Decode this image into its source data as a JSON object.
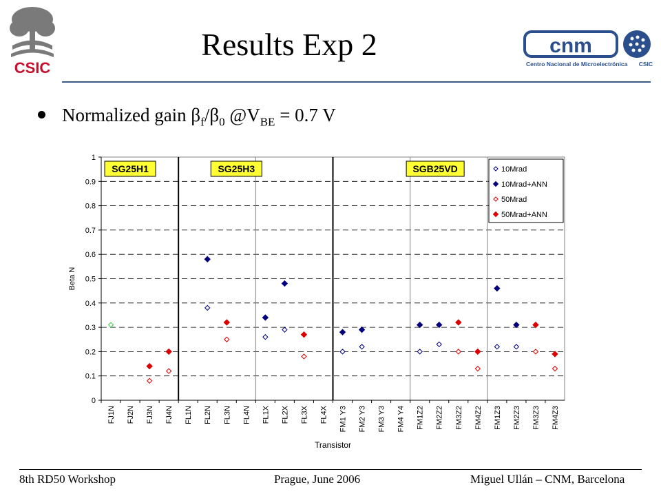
{
  "slide": {
    "title": "Results Exp 2",
    "bullet": {
      "prefix": "Normalized gain β",
      "sub1": "f",
      "mid": "/β",
      "sub2": "0",
      "middle": " @V",
      "sub3": "BE",
      "suffix": " = 0.7 V"
    },
    "logos": {
      "left_text": "CSIC",
      "right_text": "Centro Nacional de Microelectrónica",
      "right_badge": "CSIC"
    },
    "footer": {
      "left": "8th RD50 Workshop",
      "center": "Prague, June 2006",
      "right": "Miguel Ullán – CNM, Barcelona"
    },
    "colors": {
      "accent_rule": "#3a5a86",
      "logo_blue": "#2a4f8c",
      "navy": "#00007f",
      "red": "#dd0000",
      "green": "#33cc33",
      "group_label_bg": "#ffff33"
    }
  },
  "chart_data": {
    "type": "scatter",
    "xlabel": "Transistor",
    "ylabel": "Beta N",
    "ylim": [
      0,
      1
    ],
    "yticks": [
      "0",
      "0.1",
      "0.2",
      "0.3",
      "0.4",
      "0.5",
      "0.6",
      "0.7",
      "0.8",
      "0.9",
      "1"
    ],
    "grid": "dashed horizontal",
    "legend_position": "top-right",
    "categories": [
      "FJ1N",
      "FJ2N",
      "FJ3N",
      "FJ4N",
      "FL1N",
      "FL2N",
      "FL3N",
      "FL4N",
      "FL1X",
      "FL2X",
      "FL3X",
      "FL4X",
      "FM1 Y3",
      "FM2 Y3",
      "FM3 Y3",
      "FM4 Y4",
      "FM1Z2",
      "FM2Z2",
      "FM3Z2",
      "FM4Z2",
      "FM1Z3",
      "FM2Z3",
      "FM3Z3",
      "FM4Z3"
    ],
    "group_labels": [
      {
        "label": "SG25H1",
        "first": 0,
        "last": 3
      },
      {
        "label": "SG25H3",
        "first": 4,
        "last": 11
      },
      {
        "label": "SGB25VD",
        "first": 12,
        "last": 23
      }
    ],
    "series": [
      {
        "name": "10Mrad",
        "style": "open",
        "color": "#00007f",
        "values": [
          0.31,
          null,
          null,
          null,
          null,
          0.38,
          null,
          null,
          0.26,
          0.29,
          null,
          null,
          0.2,
          0.22,
          null,
          null,
          0.2,
          0.23,
          null,
          null,
          0.22,
          0.22,
          null,
          null
        ]
      },
      {
        "name": "10Mrad+ANN",
        "style": "filled",
        "color": "#00007f",
        "values": [
          null,
          null,
          null,
          null,
          null,
          0.58,
          null,
          null,
          0.34,
          0.48,
          null,
          null,
          0.28,
          0.29,
          null,
          null,
          0.31,
          0.31,
          null,
          null,
          0.46,
          0.31,
          null,
          null
        ]
      },
      {
        "name": "50Mrad",
        "style": "open",
        "color": "#dd0000",
        "values": [
          null,
          null,
          0.08,
          0.12,
          null,
          null,
          0.25,
          null,
          null,
          null,
          0.18,
          null,
          null,
          null,
          null,
          null,
          null,
          null,
          0.2,
          0.13,
          null,
          null,
          0.2,
          0.13
        ]
      },
      {
        "name": "50Mrad+ANN",
        "style": "filled",
        "color": "#dd0000",
        "values": [
          null,
          null,
          0.14,
          0.2,
          null,
          null,
          0.32,
          null,
          null,
          null,
          0.27,
          null,
          null,
          null,
          null,
          null,
          null,
          null,
          0.32,
          0.2,
          null,
          null,
          0.31,
          0.19
        ]
      }
    ],
    "first_point_color_override": "#33cc33"
  }
}
